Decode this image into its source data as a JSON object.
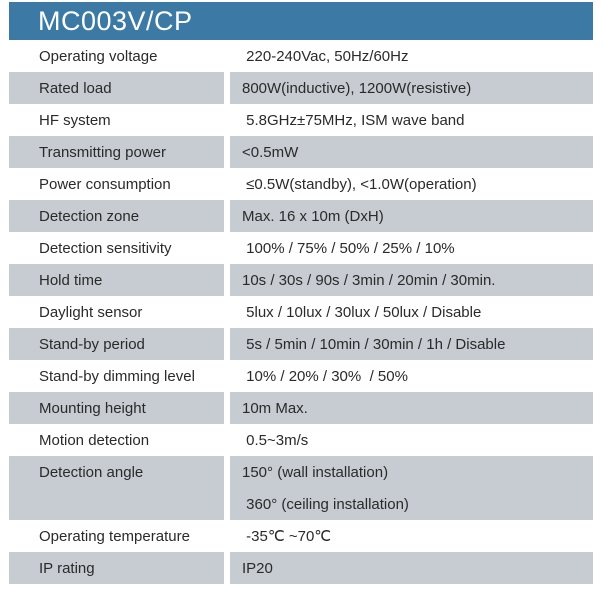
{
  "header": {
    "title": "MC003V/CP"
  },
  "colors": {
    "header_bg": "#3c7aa5",
    "row_alt_bg": "#c6ccd1",
    "title_text": "#ffffff",
    "text": "#2a2a2a"
  },
  "table": {
    "rows": [
      {
        "label": "Operating voltage",
        "values": [
          " 220-240Vac, 50Hz/60Hz"
        ],
        "shaded": false
      },
      {
        "label": "Rated load",
        "values": [
          "800W(inductive), 1200W(resistive)"
        ],
        "shaded": true
      },
      {
        "label": "HF system",
        "values": [
          " 5.8GHz±75MHz, ISM wave band"
        ],
        "shaded": false
      },
      {
        "label": "Transmitting power",
        "values": [
          "<0.5mW"
        ],
        "shaded": true
      },
      {
        "label": "Power consumption",
        "values": [
          " ≤0.5W(standby), <1.0W(operation)"
        ],
        "shaded": false
      },
      {
        "label": "Detection zone",
        "values": [
          "Max. 16 x 10m (DxH)"
        ],
        "shaded": true
      },
      {
        "label": "Detection sensitivity",
        "values": [
          " 100% / 75% / 50% / 25% / 10%"
        ],
        "shaded": false
      },
      {
        "label": "Hold time",
        "values": [
          "10s / 30s / 90s / 3min / 20min / 30min."
        ],
        "shaded": true
      },
      {
        "label": "Daylight sensor",
        "values": [
          " 5lux / 10lux / 30lux / 50lux / Disable"
        ],
        "shaded": false
      },
      {
        "label": "Stand-by period",
        "values": [
          " 5s / 5min / 10min / 30min / 1h / Disable"
        ],
        "shaded": true
      },
      {
        "label": "Stand-by dimming level",
        "values": [
          " 10% / 20% / 30%  / 50%"
        ],
        "shaded": false
      },
      {
        "label": "Mounting height",
        "values": [
          "10m Max."
        ],
        "shaded": true
      },
      {
        "label": "Motion detection",
        "values": [
          " 0.5~3m/s"
        ],
        "shaded": false
      },
      {
        "label": "Detection angle",
        "values": [
          "150° (wall installation)",
          " 360° (ceiling installation)"
        ],
        "shaded": true
      },
      {
        "label": "Operating temperature",
        "values": [
          " -35℃ ~70℃"
        ],
        "shaded": false
      },
      {
        "label": "IP rating",
        "values": [
          "IP20"
        ],
        "shaded": true
      }
    ]
  }
}
